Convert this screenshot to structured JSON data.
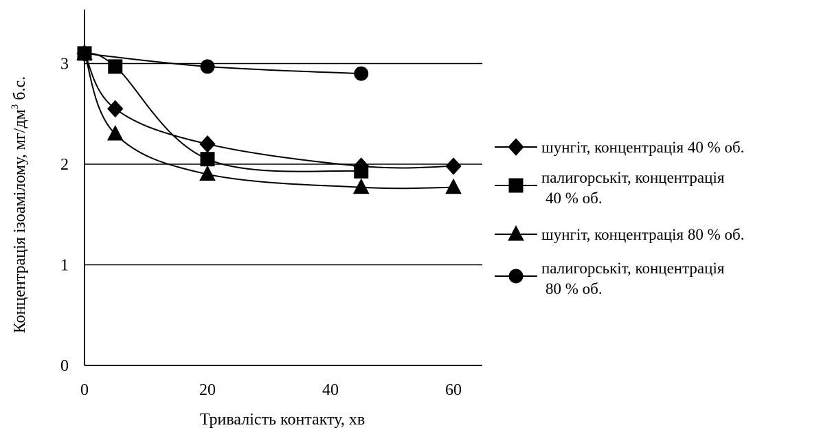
{
  "chart_data": {
    "type": "line",
    "title": "",
    "xlabel": "Тривалість контакту, хв",
    "ylabel_main": "Концентрація ізоамілому, мг/дм",
    "ylabel_sup": "3",
    "ylabel_tail": " б.с.",
    "xlim": [
      0,
      64
    ],
    "ylim": [
      0,
      3.5
    ],
    "xticks": [
      0,
      20,
      40,
      60
    ],
    "xtick_labels": [
      "0",
      "20",
      "40",
      "60"
    ],
    "yticks": [
      0,
      1,
      2,
      3
    ],
    "ytick_labels": [
      "0",
      "1",
      "2",
      "3"
    ],
    "grid": "horizontal",
    "legend_position": "right",
    "series": [
      {
        "name_lines": [
          "шунгіт, концентрація 40 % об."
        ],
        "marker": "diamond",
        "color": "#000000",
        "x": [
          0,
          5,
          20,
          45,
          60
        ],
        "y": [
          3.1,
          2.55,
          2.2,
          1.98,
          1.98
        ]
      },
      {
        "name_lines": [
          "палигорськіт, концентрація",
          "40 % об."
        ],
        "marker": "square",
        "color": "#000000",
        "x": [
          0,
          5,
          20,
          45
        ],
        "y": [
          3.1,
          2.97,
          2.05,
          1.93
        ]
      },
      {
        "name_lines": [
          "шунгіт, концентрація 80 % об."
        ],
        "marker": "triangle",
        "color": "#000000",
        "x": [
          0,
          5,
          20,
          45,
          60
        ],
        "y": [
          3.1,
          2.3,
          1.9,
          1.77,
          1.77
        ]
      },
      {
        "name_lines": [
          "палигорськіт, концентрація",
          "80 % об."
        ],
        "marker": "circle",
        "color": "#000000",
        "x": [
          0,
          20,
          45
        ],
        "y": [
          3.1,
          2.97,
          2.9
        ]
      }
    ]
  }
}
